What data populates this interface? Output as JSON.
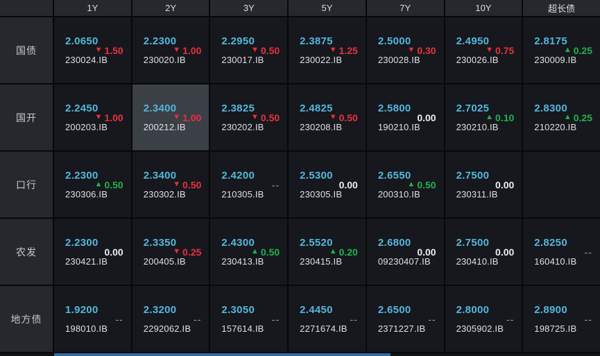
{
  "board": {
    "columns": [
      "1Y",
      "2Y",
      "3Y",
      "5Y",
      "7Y",
      "10Y",
      "超长债"
    ],
    "rows": [
      {
        "label": "国债",
        "cells": [
          {
            "yield": "2.0650",
            "change": "1.50",
            "direction": "down",
            "code": "230024.IB"
          },
          {
            "yield": "2.2300",
            "change": "1.00",
            "direction": "down",
            "code": "230020.IB"
          },
          {
            "yield": "2.2950",
            "change": "0.50",
            "direction": "down",
            "code": "230017.IB"
          },
          {
            "yield": "2.3875",
            "change": "1.25",
            "direction": "down",
            "code": "230022.IB"
          },
          {
            "yield": "2.5000",
            "change": "0.30",
            "direction": "down",
            "code": "230028.IB"
          },
          {
            "yield": "2.4950",
            "change": "0.75",
            "direction": "down",
            "code": "230026.IB"
          },
          {
            "yield": "2.8175",
            "change": "0.25",
            "direction": "up",
            "code": "230009.IB"
          }
        ]
      },
      {
        "label": "国开",
        "cells": [
          {
            "yield": "2.2450",
            "change": "1.00",
            "direction": "down",
            "code": "200203.IB"
          },
          {
            "yield": "2.3400",
            "change": "1.00",
            "direction": "down",
            "code": "200212.IB"
          },
          {
            "yield": "2.3825",
            "change": "0.50",
            "direction": "down",
            "code": "230202.IB"
          },
          {
            "yield": "2.4825",
            "change": "0.50",
            "direction": "down",
            "code": "230208.IB"
          },
          {
            "yield": "2.5800",
            "change": "0.00",
            "direction": "flat",
            "code": "190210.IB"
          },
          {
            "yield": "2.7025",
            "change": "0.10",
            "direction": "up",
            "code": "230210.IB"
          },
          {
            "yield": "2.8300",
            "change": "0.25",
            "direction": "up",
            "code": "210220.IB"
          }
        ]
      },
      {
        "label": "口行",
        "cells": [
          {
            "yield": "2.2300",
            "change": "0.50",
            "direction": "up",
            "code": "230306.IB"
          },
          {
            "yield": "2.3400",
            "change": "0.50",
            "direction": "down",
            "code": "230302.IB"
          },
          {
            "yield": "2.4200",
            "change": "--",
            "direction": "none",
            "code": "210305.IB"
          },
          {
            "yield": "2.5300",
            "change": "0.00",
            "direction": "flat",
            "code": "230305.IB"
          },
          {
            "yield": "2.6550",
            "change": "0.50",
            "direction": "up",
            "code": "200310.IB"
          },
          {
            "yield": "2.7500",
            "change": "0.00",
            "direction": "flat",
            "code": "230311.IB"
          },
          null
        ]
      },
      {
        "label": "农发",
        "cells": [
          {
            "yield": "2.2300",
            "change": "0.00",
            "direction": "flat",
            "code": "230421.IB"
          },
          {
            "yield": "2.3350",
            "change": "0.25",
            "direction": "down",
            "code": "200405.IB"
          },
          {
            "yield": "2.4300",
            "change": "0.50",
            "direction": "up",
            "code": "230413.IB"
          },
          {
            "yield": "2.5520",
            "change": "0.20",
            "direction": "up",
            "code": "230415.IB"
          },
          {
            "yield": "2.6800",
            "change": "0.00",
            "direction": "flat",
            "code": "09230407.IB"
          },
          {
            "yield": "2.7500",
            "change": "0.00",
            "direction": "flat",
            "code": "230410.IB"
          },
          {
            "yield": "2.8250",
            "change": "--",
            "direction": "none",
            "code": "160410.IB"
          }
        ]
      },
      {
        "label": "地方债",
        "cells": [
          {
            "yield": "1.9200",
            "change": "--",
            "direction": "none",
            "code": "198010.IB"
          },
          {
            "yield": "2.3200",
            "change": "--",
            "direction": "none",
            "code": "2292062.IB"
          },
          {
            "yield": "2.3050",
            "change": "--",
            "direction": "none",
            "code": "157614.IB"
          },
          {
            "yield": "2.4450",
            "change": "--",
            "direction": "none",
            "code": "2271674.IB"
          },
          {
            "yield": "2.6500",
            "change": "--",
            "direction": "none",
            "code": "2371227.IB"
          },
          {
            "yield": "2.8000",
            "change": "--",
            "direction": "none",
            "code": "2305902.IB"
          },
          {
            "yield": "2.8900",
            "change": "--",
            "direction": "none",
            "code": "198725.IB"
          }
        ]
      }
    ],
    "selected_cell": {
      "row": 1,
      "col": 1
    }
  },
  "icons": {
    "down_arrow": "▼",
    "up_arrow": "▲"
  },
  "colors": {
    "yield": "#54b7dc",
    "down": "#e8313f",
    "up": "#23b14d",
    "flat": "#eceef0",
    "dash": "#9aa0a6",
    "header_bg": "#26282d",
    "cell_bg": "#16181d",
    "selected_bg": "#3b3f46",
    "scrollbar_thumb": "#2e6da4"
  }
}
